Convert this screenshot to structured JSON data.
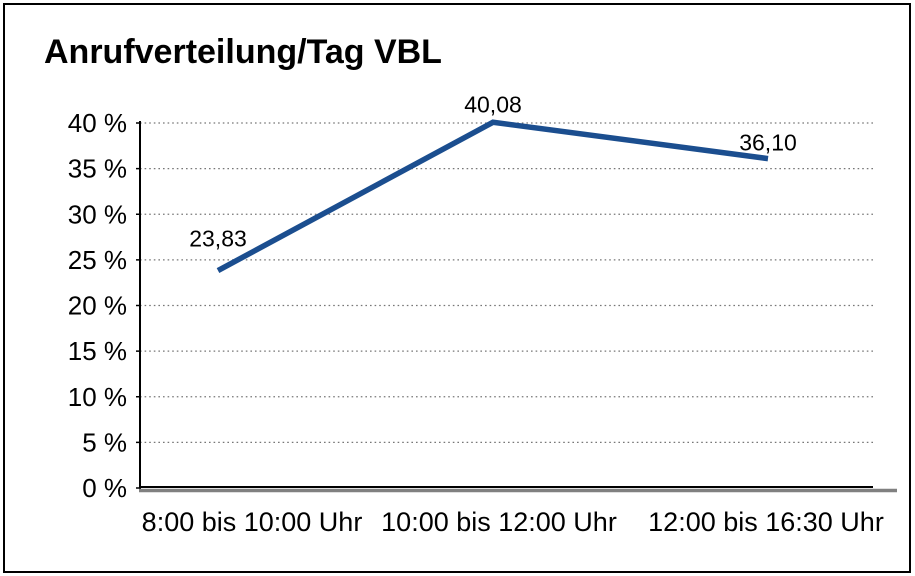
{
  "chart_data": {
    "type": "line",
    "title": "Anrufverteilung/Tag VBL",
    "categories": [
      "8:00 bis 10:00 Uhr",
      "10:00 bis 12:00 Uhr",
      "12:00 bis 16:30 Uhr"
    ],
    "series": [
      {
        "name": "Anrufverteilung/Tag VBL",
        "values": [
          23.83,
          40.08,
          36.1
        ],
        "data_labels": [
          "23,83",
          "40,08",
          "36,10"
        ]
      }
    ],
    "xlabel": "",
    "ylabel": "",
    "ylim": [
      0,
      40
    ],
    "ytick_step": 5,
    "ytick_suffix": " %",
    "ytick_labels": [
      "0 %",
      "5 %",
      "10 %",
      "15 %",
      "20 %",
      "25 %",
      "30 %",
      "35 %",
      "40 %"
    ],
    "grid": "horizontal-dotted",
    "legend": "none",
    "colors": {
      "line": "#1b4e8f",
      "grid": "#777777",
      "axis": "#000000",
      "axis_shadow": "#808080",
      "text": "#000000",
      "background": "#ffffff",
      "frame_border": "#000000"
    }
  }
}
